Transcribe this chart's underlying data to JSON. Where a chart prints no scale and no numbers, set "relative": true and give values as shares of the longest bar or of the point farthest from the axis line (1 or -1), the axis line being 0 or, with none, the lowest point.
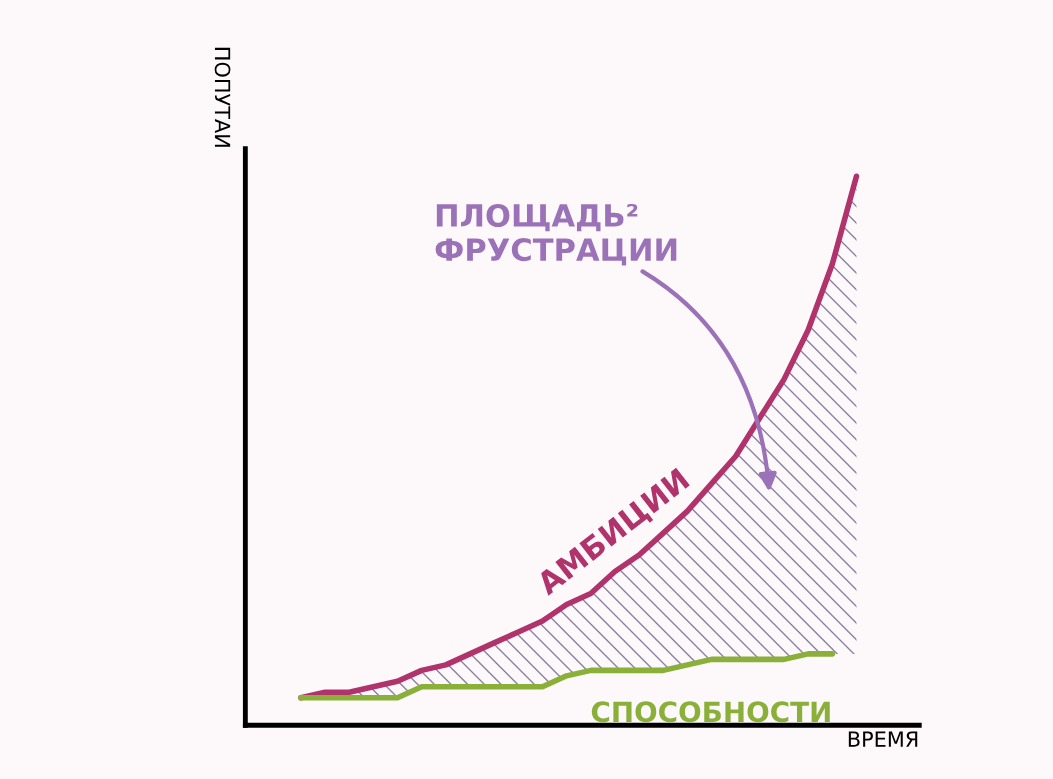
{
  "chart_data": {
    "type": "line",
    "relative": true,
    "xlabel": "ВРЕМЯ",
    "ylabel": "ПОПУТАИ",
    "categories": [
      null,
      null,
      null,
      null,
      null,
      null,
      null,
      null,
      null,
      null,
      null,
      null,
      null,
      null,
      null,
      null,
      null,
      null,
      null,
      null,
      null,
      null,
      null,
      null
    ],
    "series": [
      {
        "name": "АМБИЦИИ",
        "color": "#b0336b",
        "values": [
          0.05,
          0.06,
          0.06,
          0.07,
          0.08,
          0.1,
          0.11,
          0.13,
          0.15,
          0.17,
          0.19,
          0.22,
          0.24,
          0.28,
          0.31,
          0.35,
          0.39,
          0.44,
          0.49,
          0.56,
          0.63,
          0.72,
          0.84,
          1.0
        ],
        "lower": [
          0.05,
          0.05,
          0.05,
          0.05,
          0.05,
          0.07,
          0.07,
          0.07,
          0.07,
          0.07,
          0.07,
          0.09,
          0.1,
          0.1,
          0.1,
          0.1,
          0.11,
          0.12,
          0.12,
          0.12,
          0.12,
          0.13,
          0.13,
          0.13
        ],
        "upper": [
          0.05,
          0.06,
          0.06,
          0.07,
          0.08,
          0.1,
          0.11,
          0.13,
          0.15,
          0.17,
          0.19,
          0.22,
          0.24,
          0.28,
          0.31,
          0.35,
          0.39,
          0.44,
          0.49,
          0.56,
          0.63,
          0.72,
          0.84,
          1.0
        ]
      },
      {
        "name": "СПОСОБНОСТИ",
        "color": "#8ab03a",
        "values": [
          0.05,
          0.05,
          0.05,
          0.05,
          0.05,
          0.07,
          0.07,
          0.07,
          0.07,
          0.07,
          0.07,
          0.09,
          0.1,
          0.1,
          0.1,
          0.1,
          0.11,
          0.12,
          0.12,
          0.12,
          0.12,
          0.13,
          0.13,
          null
        ]
      }
    ],
    "annotations": [
      "ПЛОЩАДЬ² ФРУСТРАЦИИ"
    ],
    "legend": false,
    "marker": "none",
    "line_style": "solid"
  }
}
